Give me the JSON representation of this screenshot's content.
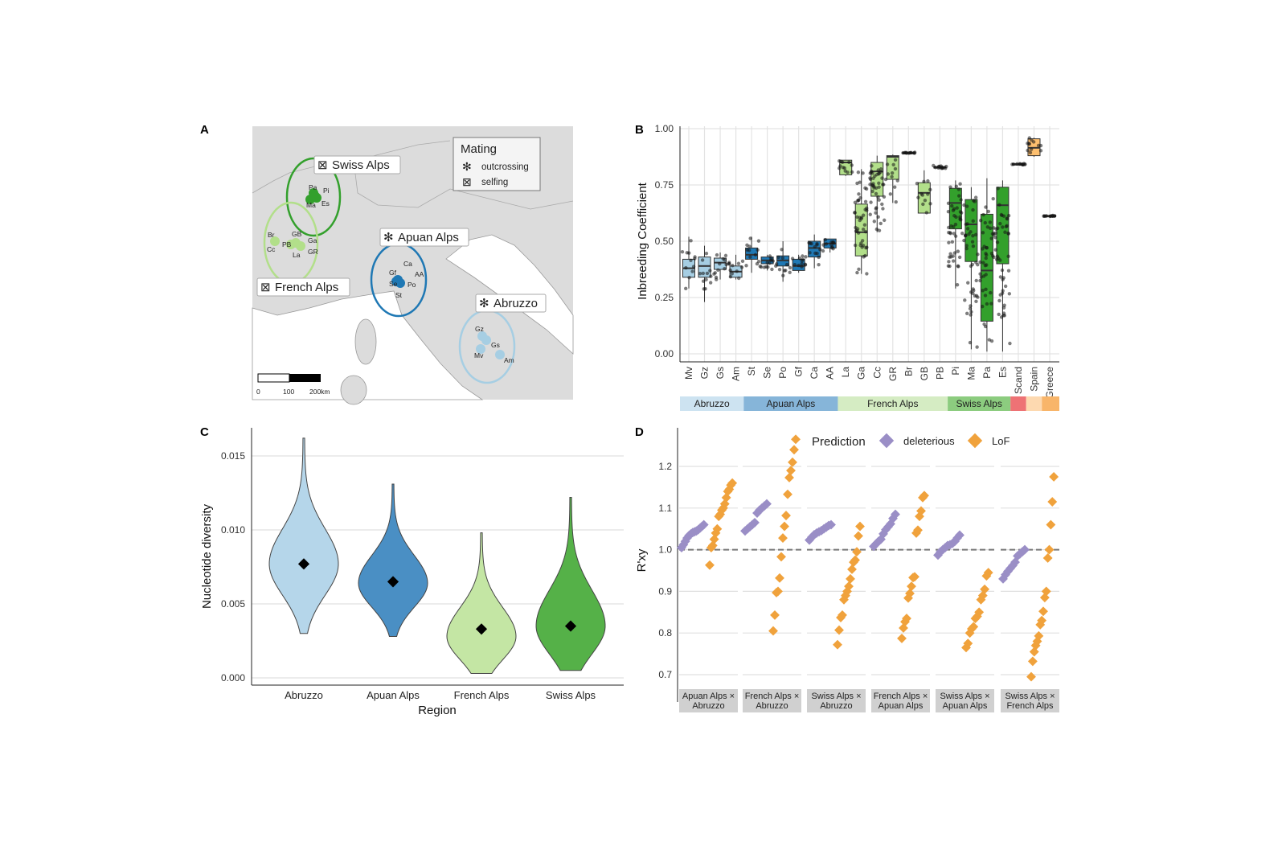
{
  "panels": {
    "a": "A",
    "b": "B",
    "c": "C",
    "d": "D"
  },
  "colors": {
    "abruzzo": "#a6cee3",
    "apuan": "#1f78b4",
    "french": "#b2df8a",
    "swiss": "#33a02c",
    "scand": "#e31a1c",
    "spain": "#fdbf6f",
    "greece": "#ff7f00",
    "deleterious": "#9a8ec6",
    "lof": "#f0a23c"
  },
  "map": {
    "legend": {
      "title": "Mating",
      "items": [
        {
          "symbol": "✻",
          "label": "outcrossing"
        },
        {
          "symbol": "⊠",
          "label": "selfing"
        }
      ]
    },
    "regions": [
      {
        "name": "Swiss Alps",
        "symbol": "⊠",
        "color": "#33a02c",
        "sites": [
          "Pa",
          "Pi",
          "Ma",
          "Es"
        ]
      },
      {
        "name": "French Alps",
        "symbol": "⊠",
        "color": "#b2df8a",
        "sites": [
          "Br",
          "GB",
          "Cc",
          "PB",
          "Ga",
          "La",
          "GR"
        ]
      },
      {
        "name": "Apuan Alps",
        "symbol": "✻",
        "color": "#1f78b4",
        "sites": [
          "Ca",
          "Gf",
          "AA",
          "Se",
          "Po",
          "St"
        ]
      },
      {
        "name": "Abruzzo",
        "symbol": "✻",
        "color": "#a6cee3",
        "sites": [
          "Gz",
          "Gs",
          "Mv",
          "Am"
        ]
      }
    ],
    "scalebar": {
      "labels": [
        "0",
        "100",
        "200km"
      ]
    }
  },
  "chart_data": [
    {
      "panel": "B",
      "type": "box",
      "ylabel": "Inbreeding Coefficient",
      "ylim": [
        0,
        1
      ],
      "yticks": [
        "0.00",
        "0.25",
        "0.50",
        "0.75",
        "1.00"
      ],
      "groups": [
        {
          "name": "Abruzzo",
          "color": "#cde3f1",
          "fill": "#a6cee3",
          "pops": [
            {
              "name": "Mv",
              "stats": [
                0.29,
                0.34,
                0.38,
                0.42,
                0.52
              ]
            },
            {
              "name": "Gz",
              "stats": [
                0.23,
                0.34,
                0.39,
                0.43,
                0.48
              ]
            },
            {
              "name": "Gs",
              "stats": [
                0.33,
                0.375,
                0.405,
                0.425,
                0.45
              ]
            },
            {
              "name": "Am",
              "stats": [
                0.33,
                0.34,
                0.365,
                0.39,
                0.44
              ]
            }
          ]
        },
        {
          "name": "Apuan Alps",
          "color": "#86b5d9",
          "fill": "#1f78b4",
          "pops": [
            {
              "name": "St",
              "stats": [
                0.36,
                0.42,
                0.44,
                0.47,
                0.52
              ]
            },
            {
              "name": "Se",
              "stats": [
                0.37,
                0.4,
                0.415,
                0.43,
                0.44
              ]
            },
            {
              "name": "Po",
              "stats": [
                0.32,
                0.39,
                0.415,
                0.435,
                0.5
              ]
            },
            {
              "name": "Gf",
              "stats": [
                0.36,
                0.37,
                0.39,
                0.42,
                0.44
              ]
            },
            {
              "name": "Ca",
              "stats": [
                0.38,
                0.43,
                0.47,
                0.5,
                0.53
              ]
            },
            {
              "name": "AA",
              "stats": [
                0.45,
                0.47,
                0.49,
                0.51,
                0.51
              ]
            }
          ]
        },
        {
          "name": "French Alps",
          "color": "#d5ecc3",
          "fill": "#b2df8a",
          "pops": [
            {
              "name": "La",
              "stats": [
                0.79,
                0.795,
                0.85,
                0.86,
                0.86
              ]
            },
            {
              "name": "Ga",
              "stats": [
                0.355,
                0.435,
                0.54,
                0.665,
                0.82
              ]
            },
            {
              "name": "Cc",
              "stats": [
                0.54,
                0.7,
                0.81,
                0.85,
                0.88
              ]
            },
            {
              "name": "GR",
              "stats": [
                0.67,
                0.775,
                0.875,
                0.88,
                0.885
              ]
            },
            {
              "name": "Br",
              "stats": [
                0.89,
                0.89,
                0.89,
                0.895,
                0.895
              ]
            },
            {
              "name": "GB",
              "stats": [
                0.625,
                0.625,
                0.715,
                0.76,
                0.815
              ]
            },
            {
              "name": "PB",
              "stats": [
                0.82,
                0.825,
                0.83,
                0.83,
                0.84
              ]
            }
          ]
        },
        {
          "name": "Swiss Alps",
          "color": "#8ccc7f",
          "fill": "#33a02c",
          "pops": [
            {
              "name": "Pi",
              "stats": [
                0.29,
                0.555,
                0.67,
                0.735,
                0.77
              ]
            },
            {
              "name": "Ma",
              "stats": [
                0.02,
                0.41,
                0.575,
                0.685,
                0.74
              ]
            },
            {
              "name": "Pa",
              "stats": [
                0.01,
                0.145,
                0.37,
                0.62,
                0.78
              ]
            },
            {
              "name": "Es",
              "stats": [
                0.01,
                0.4,
                0.66,
                0.74,
                0.77
              ]
            }
          ]
        },
        {
          "name": "",
          "color": "#ee7275",
          "fill": "#333333",
          "pops": [
            {
              "name": "Scand",
              "stats": [
                0.84,
                0.84,
                0.84,
                0.845,
                0.845
              ]
            }
          ]
        },
        {
          "name": "",
          "color": "#fdd9b0",
          "fill": "#fdbf6f",
          "pops": [
            {
              "name": "Spain",
              "stats": [
                0.875,
                0.88,
                0.915,
                0.955,
                0.96
              ]
            }
          ]
        },
        {
          "name": "",
          "color": "#f8b56a",
          "fill": "#ff7f00",
          "pops": [
            {
              "name": "Greece",
              "stats": [
                0.61,
                0.61,
                0.61,
                0.615,
                0.615
              ]
            }
          ]
        }
      ]
    },
    {
      "panel": "C",
      "type": "violin",
      "xlabel": "Region",
      "ylabel": "Nucleotide diversity",
      "ylim": [
        0,
        0.0165
      ],
      "yticks": [
        "0.000",
        "0.005",
        "0.010",
        "0.015"
      ],
      "categories": [
        "Abruzzo",
        "Apuan Alps",
        "French Alps",
        "Swiss Alps"
      ],
      "fills": [
        "#b5d6ea",
        "#4a8fc4",
        "#c4e6a4",
        "#55b148"
      ],
      "range": [
        [
          0.003,
          0.0162
        ],
        [
          0.0028,
          0.0131
        ],
        [
          0.0003,
          0.0098
        ],
        [
          0.0005,
          0.0122
        ]
      ],
      "mode": [
        0.0077,
        0.0064,
        0.0028,
        0.0035
      ],
      "mean": [
        0.0077,
        0.0065,
        0.0033,
        0.0035
      ]
    },
    {
      "panel": "D",
      "type": "scatter",
      "ylabel": "R'xy",
      "ylim": [
        0.68,
        1.29
      ],
      "reference_line": 1.0,
      "yticks": [
        "0.7",
        "0.8",
        "0.9",
        "1.0",
        "1.1",
        "1.2"
      ],
      "legend": {
        "title": "Prediction",
        "items": [
          "deleterious",
          "LoF"
        ]
      },
      "facets": [
        {
          "label": [
            "Apuan Alps ×",
            "Abruzzo"
          ],
          "deleterious": [
            1.005,
            1.012,
            1.02,
            1.028,
            1.034,
            1.038,
            1.041,
            1.043,
            1.045,
            1.048,
            1.052,
            1.056,
            1.06
          ],
          "lof": [
            0.963,
            1.005,
            1.01,
            1.025,
            1.04,
            1.05,
            1.08,
            1.085,
            1.095,
            1.1,
            1.11,
            1.125,
            1.14,
            1.145,
            1.155,
            1.16
          ]
        },
        {
          "label": [
            "French Alps ×",
            "Abruzzo"
          ],
          "deleterious": [
            1.045,
            1.05,
            1.055,
            1.06,
            1.065,
            1.088,
            1.095,
            1.1,
            1.105,
            1.11
          ],
          "lof": [
            0.805,
            0.843,
            0.897,
            0.9,
            0.932,
            0.983,
            1.028,
            1.056,
            1.082,
            1.133,
            1.173,
            1.19,
            1.21,
            1.24,
            1.265
          ]
        },
        {
          "label": [
            "Swiss Alps ×",
            "Abruzzo"
          ],
          "deleterious": [
            1.023,
            1.03,
            1.036,
            1.04,
            1.043,
            1.046,
            1.05,
            1.054,
            1.058,
            1.06
          ],
          "lof": [
            0.772,
            0.807,
            0.837,
            0.843,
            0.88,
            0.89,
            0.9,
            0.912,
            0.93,
            0.953,
            0.97,
            0.975,
            0.995,
            1.033,
            1.056
          ]
        },
        {
          "label": [
            "French Alps ×",
            "Apuan Alps"
          ],
          "deleterious": [
            1.008,
            1.014,
            1.02,
            1.025,
            1.038,
            1.048,
            1.055,
            1.062,
            1.075,
            1.085
          ],
          "lof": [
            0.787,
            0.812,
            0.827,
            0.835,
            0.884,
            0.895,
            0.912,
            0.933,
            0.935,
            1.04,
            1.047,
            1.08,
            1.093,
            1.125,
            1.13
          ]
        },
        {
          "label": [
            "Swiss Alps ×",
            "Apuan Alps"
          ],
          "deleterious": [
            0.987,
            0.995,
            1.0,
            1.005,
            1.01,
            1.012,
            1.015,
            1.02,
            1.028,
            1.035
          ],
          "lof": [
            0.765,
            0.775,
            0.8,
            0.81,
            0.815,
            0.835,
            0.84,
            0.85,
            0.88,
            0.89,
            0.905,
            0.937,
            0.945
          ]
        },
        {
          "label": [
            "Swiss Alps ×",
            "French Alps"
          ],
          "deleterious": [
            0.93,
            0.94,
            0.948,
            0.955,
            0.962,
            0.97,
            0.985,
            0.99,
            0.995,
            1.0
          ],
          "lof": [
            0.695,
            0.732,
            0.755,
            0.77,
            0.78,
            0.793,
            0.82,
            0.83,
            0.852,
            0.885,
            0.9,
            0.98,
            1.0,
            1.06,
            1.115,
            1.175
          ]
        }
      ]
    }
  ]
}
